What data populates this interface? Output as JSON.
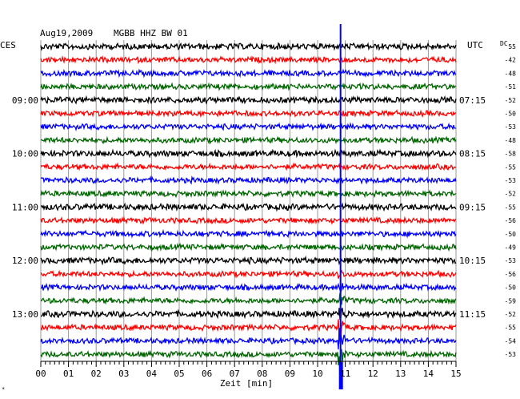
{
  "header": {
    "date": "Aug19,2009",
    "station": "MGBB HHZ BW 01",
    "left_zone": "CES",
    "right_zone": "UTC",
    "dc_label": "DC"
  },
  "left_times": [
    {
      "label": "09:00",
      "row": 4
    },
    {
      "label": "10:00",
      "row": 8
    },
    {
      "label": "11:00",
      "row": 12
    },
    {
      "label": "12:00",
      "row": 16
    },
    {
      "label": "13:00",
      "row": 20
    }
  ],
  "right_times": [
    {
      "label": "07:15",
      "row": 4
    },
    {
      "label": "08:15",
      "row": 8
    },
    {
      "label": "09:15",
      "row": 12
    },
    {
      "label": "10:15",
      "row": 16
    },
    {
      "label": "11:15",
      "row": 20
    }
  ],
  "dc_values": [
    "55",
    "-42",
    "-48",
    "-51",
    "-52",
    "-50",
    "-53",
    "-48",
    "-58",
    "-55",
    "-53",
    "-52",
    "-55",
    "-56",
    "-50",
    "-49",
    "-53",
    "-56",
    "-50",
    "-59",
    "-52",
    "-55",
    "-54",
    "-53"
  ],
  "trace_colors": [
    "#000000",
    "#ff0000",
    "#0000ff",
    "#006600"
  ],
  "event_marker_color": "#0000ff",
  "event_minute": 10.8,
  "x_axis": {
    "tick_labels": [
      "00",
      "01",
      "02",
      "03",
      "04",
      "05",
      "06",
      "07",
      "08",
      "09",
      "10",
      "11",
      "12",
      "13",
      "14",
      "15"
    ],
    "label": "Zeit [min]",
    "range_min": [
      0,
      15
    ]
  },
  "footer_mark": "*"
}
